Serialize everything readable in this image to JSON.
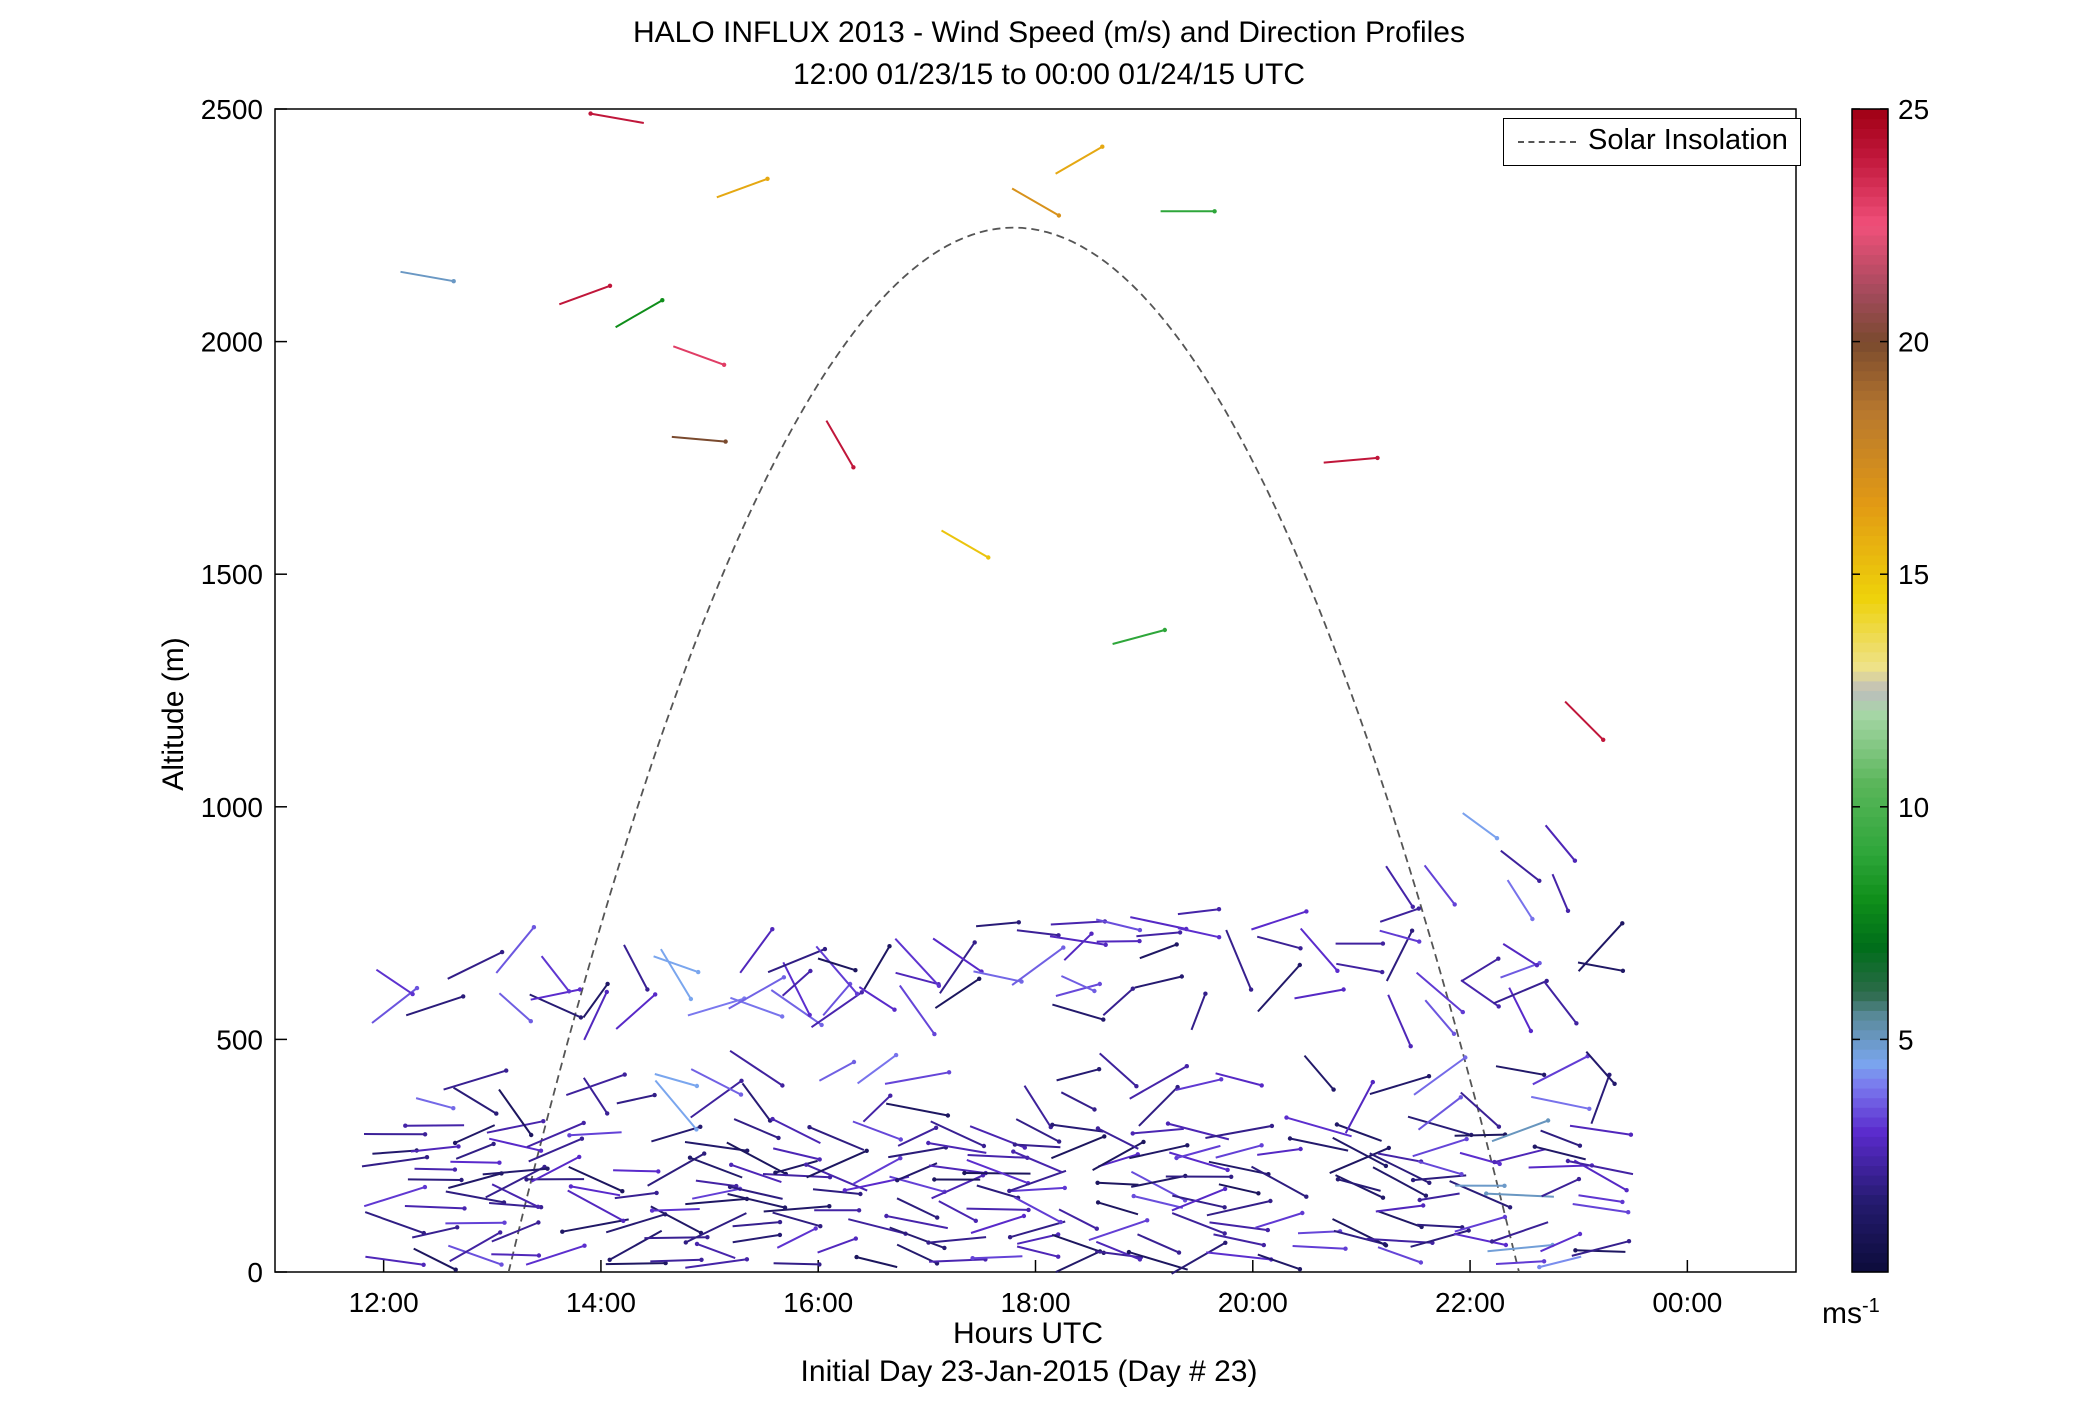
{
  "title_line1": "HALO INFLUX 2013 - Wind Speed (m/s) and Direction Profiles",
  "title_line2": "12:00 01/23/15 to 00:00 01/24/15  UTC",
  "xlabel": "Hours UTC",
  "xlabel2": "Initial Day 23-Jan-2015 (Day # 23)",
  "ylabel": "Altitude (m)",
  "legend": "Solar Insolation",
  "colorbar": {
    "unit": "ms",
    "unit_exp": "-1",
    "ticks": [
      "5",
      "10",
      "15",
      "20",
      "25"
    ],
    "range": [
      0,
      25
    ]
  },
  "chart_data": {
    "type": "scatter",
    "xlim": [
      11,
      25
    ],
    "ylim": [
      0,
      2500
    ],
    "xticks": [
      12,
      14,
      16,
      18,
      20,
      22,
      24
    ],
    "xtick_labels": [
      "12:00",
      "14:00",
      "16:00",
      "18:00",
      "20:00",
      "22:00",
      "00:00"
    ],
    "yticks": [
      0,
      500,
      1000,
      1500,
      2000,
      2500
    ],
    "ytick_labels": [
      "0",
      "500",
      "1000",
      "1500",
      "2000",
      "2500"
    ],
    "solar_insolation": {
      "start": 13.15,
      "peak_time": 17.8,
      "peak_alt": 2245,
      "end": 22.45
    },
    "wind_vectors_upper": [
      {
        "t": 14.15,
        "alt": 2480,
        "dir": 280,
        "speed": 24
      },
      {
        "t": 15.3,
        "alt": 2330,
        "dir": 70,
        "speed": 16
      },
      {
        "t": 18.4,
        "alt": 2390,
        "dir": 60,
        "speed": 16
      },
      {
        "t": 18.0,
        "alt": 2300,
        "dir": 120,
        "speed": 17
      },
      {
        "t": 19.4,
        "alt": 2280,
        "dir": 90,
        "speed": 9
      },
      {
        "t": 12.4,
        "alt": 2140,
        "dir": 100,
        "speed": 5
      },
      {
        "t": 13.85,
        "alt": 2100,
        "dir": 70,
        "speed": 24
      },
      {
        "t": 14.35,
        "alt": 2060,
        "dir": 60,
        "speed": 8
      },
      {
        "t": 14.9,
        "alt": 1970,
        "dir": 110,
        "speed": 23
      },
      {
        "t": 14.9,
        "alt": 1790,
        "dir": 95,
        "speed": 20
      },
      {
        "t": 16.2,
        "alt": 1780,
        "dir": 150,
        "speed": 24
      },
      {
        "t": 17.35,
        "alt": 1565,
        "dir": 120,
        "speed": 15
      },
      {
        "t": 18.95,
        "alt": 1365,
        "dir": 75,
        "speed": 9
      },
      {
        "t": 20.9,
        "alt": 1745,
        "dir": 85,
        "speed": 24
      },
      {
        "t": 23.05,
        "alt": 1185,
        "dir": 135,
        "speed": 24
      }
    ]
  }
}
